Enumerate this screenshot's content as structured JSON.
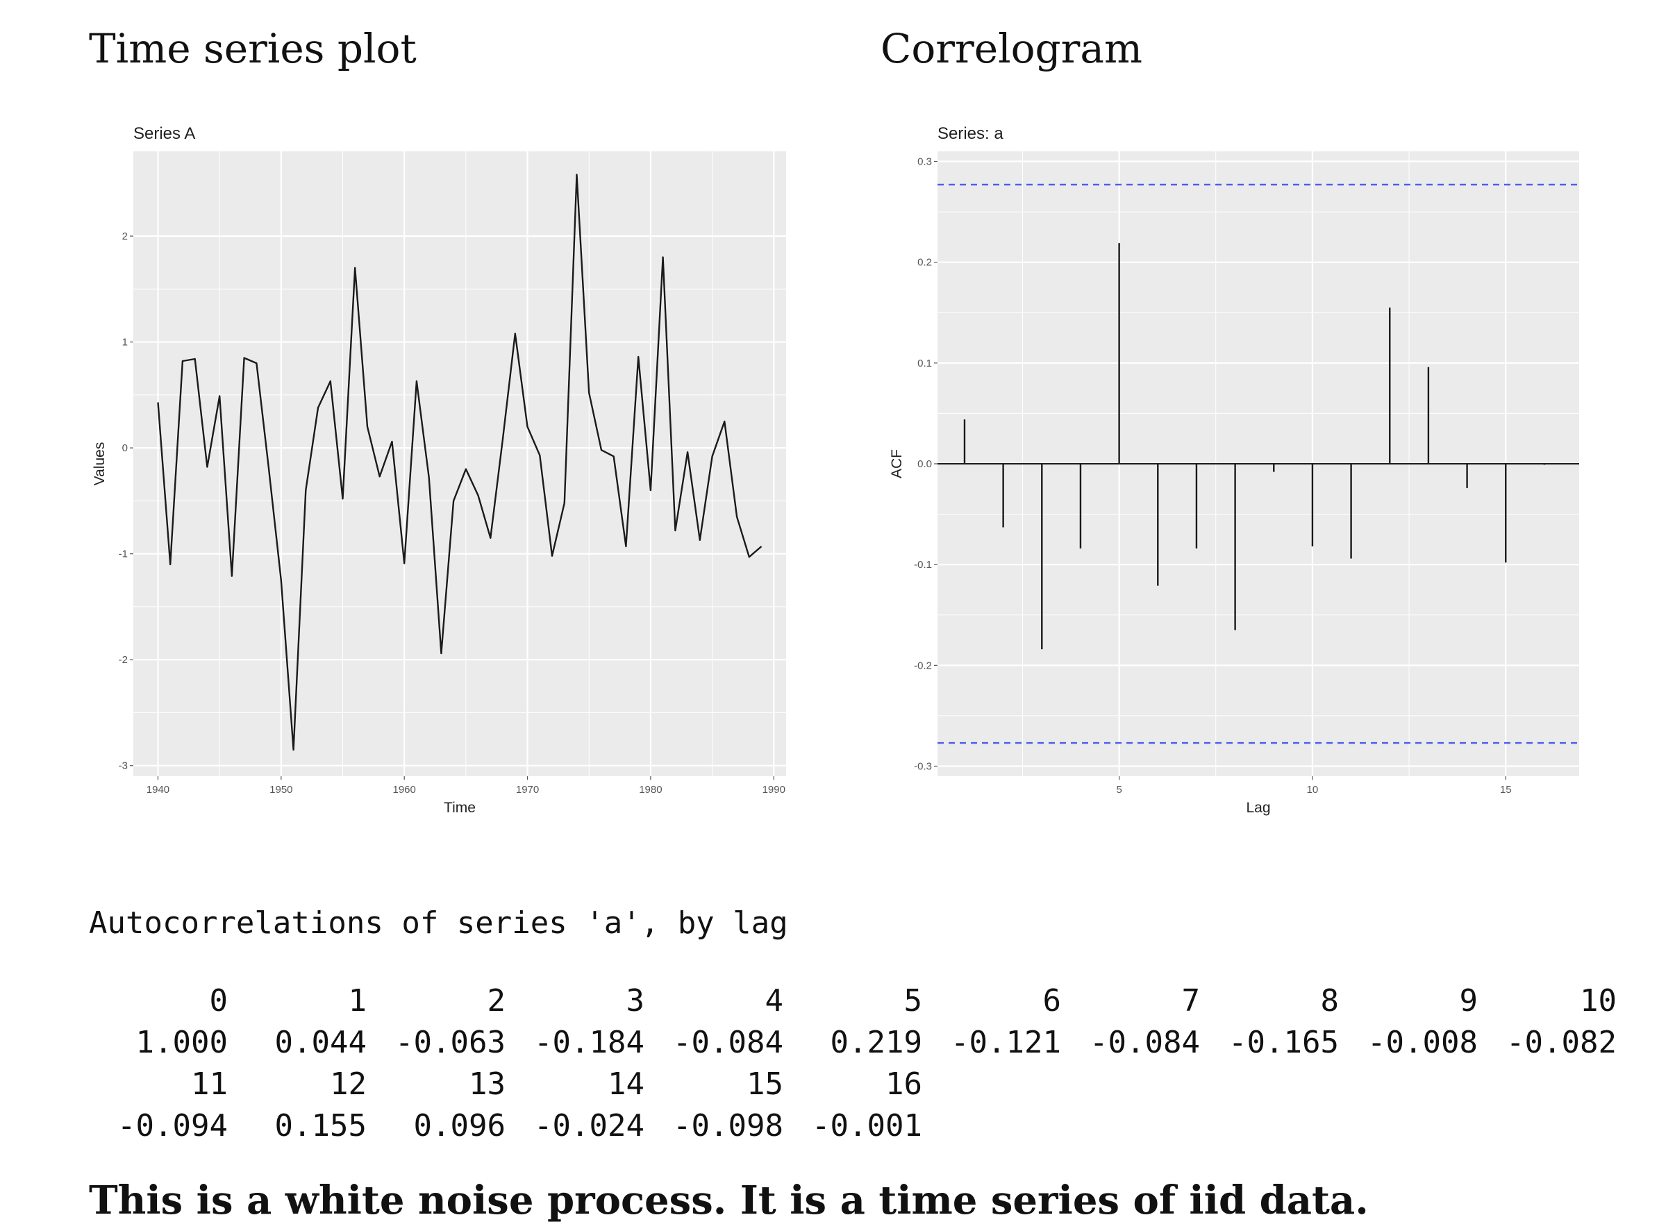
{
  "headings": {
    "time_series": "Time series plot",
    "correlogram": "Correlogram"
  },
  "chart_data": [
    {
      "type": "line",
      "title": "Series A",
      "xlabel": "Time",
      "ylabel": "Values",
      "xlim": [
        1938,
        1991
      ],
      "ylim": [
        -3.1,
        2.8
      ],
      "xticks": [
        1940,
        1950,
        1960,
        1970,
        1980,
        1990
      ],
      "yticks": [
        -3,
        -2,
        -1,
        0,
        1,
        2
      ],
      "grid": true,
      "x": [
        1940,
        1941,
        1942,
        1943,
        1944,
        1945,
        1946,
        1947,
        1948,
        1949,
        1950,
        1951,
        1952,
        1953,
        1954,
        1955,
        1956,
        1957,
        1958,
        1959,
        1960,
        1961,
        1962,
        1963,
        1964,
        1965,
        1966,
        1967,
        1968,
        1969,
        1970,
        1971,
        1972,
        1973,
        1974,
        1975,
        1976,
        1977,
        1978,
        1979,
        1980,
        1981,
        1982,
        1983,
        1984,
        1985,
        1986,
        1987,
        1988,
        1989
      ],
      "y": [
        0.43,
        -1.1,
        0.82,
        0.84,
        -0.18,
        0.49,
        -1.21,
        0.85,
        0.8,
        -0.2,
        -1.25,
        -2.85,
        -0.4,
        0.38,
        0.63,
        -0.48,
        1.7,
        0.2,
        -0.27,
        0.06,
        -1.09,
        0.63,
        -0.28,
        -1.94,
        -0.5,
        -0.2,
        -0.45,
        -0.85,
        0.09,
        1.08,
        0.2,
        -0.07,
        -1.02,
        -0.52,
        2.58,
        0.52,
        -0.02,
        -0.08,
        -0.93,
        0.86,
        -0.4,
        1.8,
        -0.78,
        -0.04,
        -0.87,
        -0.08,
        0.25,
        -0.65,
        -1.03,
        -0.93
      ]
    },
    {
      "type": "bar",
      "title": "Series: a",
      "xlabel": "Lag",
      "ylabel": "ACF",
      "xlim": [
        0.3,
        16.9
      ],
      "ylim": [
        -0.31,
        0.31
      ],
      "xticks": [
        5,
        10,
        15
      ],
      "yticks": [
        -0.3,
        -0.2,
        -0.1,
        0.0,
        0.1,
        0.2,
        0.3
      ],
      "confidence_band": 0.277,
      "grid": true,
      "lags": [
        1,
        2,
        3,
        4,
        5,
        6,
        7,
        8,
        9,
        10,
        11,
        12,
        13,
        14,
        15,
        16
      ],
      "values": [
        0.044,
        -0.063,
        -0.184,
        -0.084,
        0.219,
        -0.121,
        -0.084,
        -0.165,
        -0.008,
        -0.082,
        -0.094,
        0.155,
        0.096,
        -0.024,
        -0.098,
        -0.001
      ]
    }
  ],
  "acf_output": {
    "heading": "Autocorrelations of series 'a', by lag",
    "rows": [
      [
        "0",
        "1",
        "2",
        "3",
        "4",
        "5",
        "6",
        "7",
        "8",
        "9",
        "10"
      ],
      [
        "1.000",
        "0.044",
        "-0.063",
        "-0.184",
        "-0.084",
        "0.219",
        "-0.121",
        "-0.084",
        "-0.165",
        "-0.008",
        "-0.082"
      ],
      [
        "11",
        "12",
        "13",
        "14",
        "15",
        "16"
      ],
      [
        "-0.094",
        "0.155",
        "0.096",
        "-0.024",
        "-0.098",
        "-0.001"
      ]
    ]
  },
  "conclusion": "This is a white noise process. It is a time series of iid data.",
  "colors": {
    "panel_bg": "#ebebeb",
    "grid": "#ffffff",
    "line": "#1a1a1a",
    "confidence_band": "#4a5cf0"
  }
}
